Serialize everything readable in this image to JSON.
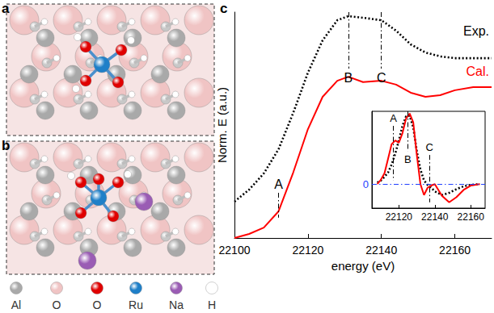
{
  "figure": {
    "panel_labels": [
      "a",
      "b",
      "c"
    ],
    "atom_legend": [
      {
        "label": "Al",
        "color": "#a9a9a9"
      },
      {
        "label": "O",
        "color": "#f0c4c4"
      },
      {
        "label": "O",
        "color": "#e00000"
      },
      {
        "label": "Ru",
        "color": "#1e7fc8"
      },
      {
        "label": "Na",
        "color": "#9a5cb4"
      },
      {
        "label": "H",
        "color": "#ffffff"
      }
    ]
  },
  "chart_data": [
    {
      "type": "line",
      "xlabel": "energy (eV)",
      "ylabel": "Norm. E (a.u.)",
      "x": [
        22100,
        22104,
        22108,
        22112,
        22116,
        22120,
        22124,
        22128,
        22131,
        22135,
        22140,
        22144,
        22148,
        22152,
        22156,
        22160,
        22165,
        22170
      ],
      "series": [
        {
          "name": "Exp.",
          "color": "#000000",
          "line_style": "dotted",
          "values": [
            0.161,
            0.214,
            0.286,
            0.393,
            0.554,
            0.732,
            0.875,
            0.964,
            0.982,
            0.975,
            0.964,
            0.918,
            0.857,
            0.821,
            0.804,
            0.796,
            0.796,
            0.796
          ]
        },
        {
          "name": "Cal.",
          "color": "#ff0000",
          "line_style": "solid",
          "values": [
            0,
            0.018,
            0.046,
            0.118,
            0.29,
            0.482,
            0.625,
            0.696,
            0.714,
            0.69,
            0.696,
            0.679,
            0.643,
            0.625,
            0.632,
            0.654,
            0.668,
            0.668
          ]
        }
      ],
      "xlim": [
        22100,
        22170
      ],
      "xticks": [
        22100,
        22120,
        22140,
        22160
      ],
      "ylim": [
        0,
        1
      ],
      "tick_labels": "x",
      "grid": false,
      "legend": "upper right",
      "annotations": [
        {
          "text": "A",
          "x": 22112
        },
        {
          "text": "B",
          "x": 22131
        },
        {
          "text": "C",
          "x": 22140
        }
      ]
    },
    {
      "type": "line",
      "x": [
        22108,
        22110,
        22112,
        22114,
        22116,
        22118,
        22120,
        22122,
        22124,
        22126,
        22128,
        22130,
        22132,
        22134,
        22136,
        22138,
        22140,
        22144,
        22148,
        22152,
        22156,
        22160,
        22165
      ],
      "series": [
        {
          "color": "#000000",
          "line_style": "dotted",
          "values": [
            0.02,
            0.05,
            0.1,
            0.16,
            0.27,
            0.42,
            0.6,
            0.8,
            0.93,
            0.94,
            0.78,
            0.45,
            0.2,
            0.05,
            -0.01,
            -0.05,
            -0.1,
            -0.15,
            -0.12,
            -0.07,
            -0.03,
            -0.01,
            0
          ]
        },
        {
          "color": "#ff0000",
          "line_style": "solid",
          "values": [
            0,
            0.06,
            0.15,
            0.35,
            0.55,
            0.6,
            0.57,
            0.7,
            0.9,
            0.97,
            0.85,
            0.4,
            0,
            -0.15,
            -0.05,
            -0.02,
            0,
            -0.16,
            -0.25,
            -0.18,
            -0.08,
            -0.02,
            0
          ]
        }
      ],
      "xlim": [
        22105,
        22168
      ],
      "xticks": [
        22120,
        22140,
        22160
      ],
      "ylim": [
        -0.33,
        1.0
      ],
      "yticks": [
        0
      ],
      "grid": true,
      "annotations": [
        {
          "text": "A",
          "x": 22117
        },
        {
          "text": "B",
          "x": 22125
        },
        {
          "text": "C",
          "x": 22137
        }
      ]
    }
  ]
}
